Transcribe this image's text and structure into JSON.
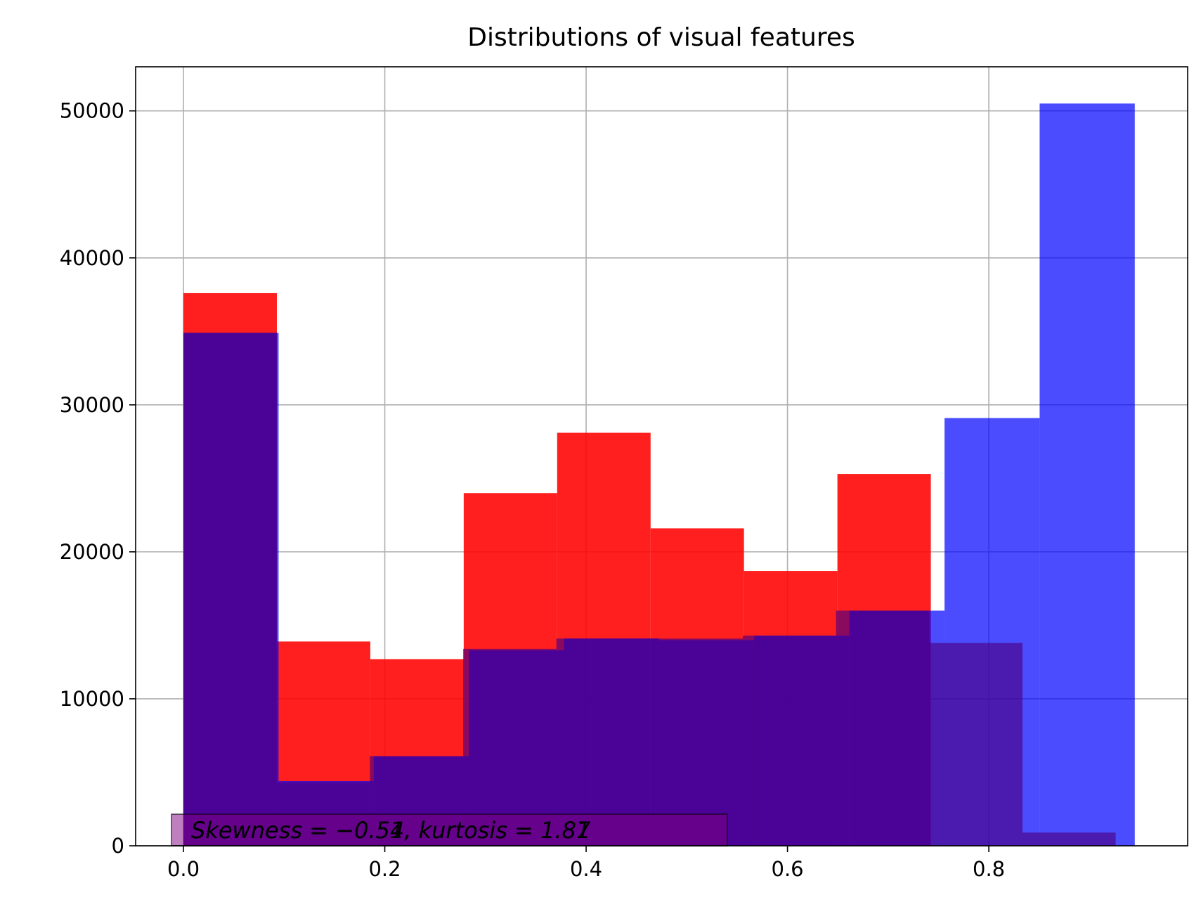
{
  "chart_data": {
    "type": "bar",
    "title": "Distributions of visual features",
    "xlabel": "",
    "ylabel": "",
    "xlim": [
      -0.0475,
      0.9975
    ],
    "ylim": [
      0,
      53000
    ],
    "grid": true,
    "xticks": [
      0.0,
      0.2,
      0.4,
      0.6,
      0.8
    ],
    "xtick_labels": [
      "0.0",
      "0.2",
      "0.4",
      "0.6",
      "0.8"
    ],
    "yticks": [
      0,
      10000,
      20000,
      30000,
      40000,
      50000
    ],
    "ytick_labels": [
      "0",
      "10000",
      "20000",
      "30000",
      "40000",
      "50000"
    ],
    "series": [
      {
        "color": "#ff0000",
        "alpha": 0.88,
        "bin_edges": [
          0.0,
          0.0928,
          0.1856,
          0.2784,
          0.3712,
          0.464,
          0.5568,
          0.6496,
          0.7424
        ],
        "counts": [
          37600,
          13900,
          12700,
          24000,
          28100,
          21600,
          18700,
          25300
        ]
      },
      {
        "color": "#0000ff",
        "alpha": 0.7,
        "bin_edges": [
          0.0,
          0.0945,
          0.189,
          0.2835,
          0.378,
          0.4725,
          0.567,
          0.6615,
          0.756,
          0.8505,
          0.945
        ],
        "counts": [
          34900,
          4400,
          6100,
          13300,
          14100,
          14000,
          14300,
          16000,
          29100,
          50500
        ]
      },
      {
        "color": "#4b0082",
        "alpha": 0.65,
        "bin_edges": [
          0.0,
          0.0926,
          0.1852,
          0.2778,
          0.3704,
          0.463,
          0.5556,
          0.6482,
          0.7408,
          0.8334,
          0.926
        ],
        "counts": [
          34900,
          4300,
          6100,
          13400,
          14100,
          14100,
          14300,
          16000,
          13800,
          900
        ]
      }
    ],
    "annotations": [
      {
        "text": "Skewness = −0.54, kurtosis = 1.87"
      },
      {
        "text": "Skewness = −0.51, kurtosis = 1.81"
      }
    ],
    "annotation_box_color": "#800080"
  }
}
